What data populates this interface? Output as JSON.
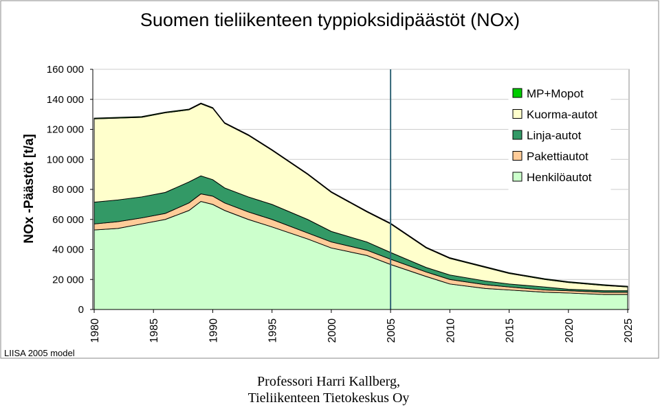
{
  "chart_data": {
    "type": "stacked_area",
    "title": "Suomen tieliikenteen typpioksidipäästöt (NOx)",
    "y_label": "NOx -Päästöt [t/a]",
    "note": "LIISA 2005 model",
    "credit": [
      "Professori Harri Kallberg,",
      "Tieliikenteen Tietokeskus Oy"
    ],
    "x": [
      1980,
      1982,
      1984,
      1986,
      1988,
      1989,
      1990,
      1991,
      1993,
      1995,
      1998,
      2000,
      2003,
      2005,
      2008,
      2010,
      2013,
      2015,
      2018,
      2020,
      2023,
      2025
    ],
    "series": [
      {
        "name": "Henkilöautot",
        "color": "#ccffcc",
        "values": [
          53000,
          54000,
          57000,
          60000,
          66000,
          72000,
          70000,
          66000,
          60000,
          55000,
          47000,
          41000,
          36000,
          30000,
          22000,
          17000,
          14000,
          13000,
          11500,
          11000,
          10000,
          10000
        ]
      },
      {
        "name": "Pakettiautot",
        "color": "#ffcc99",
        "values": [
          4000,
          4500,
          4000,
          4000,
          5000,
          5000,
          5500,
          5000,
          5000,
          5000,
          4000,
          4000,
          3500,
          3500,
          3000,
          3000,
          2500,
          2000,
          1500,
          1500,
          1500,
          1500
        ]
      },
      {
        "name": "Linja-autot",
        "color": "#339966",
        "values": [
          14500,
          14500,
          14000,
          14000,
          14000,
          12000,
          11000,
          10000,
          10000,
          10000,
          9000,
          7000,
          5500,
          4500,
          3000,
          3000,
          2500,
          2000,
          2000,
          1000,
          1000,
          1000
        ]
      },
      {
        "name": "Kuorma-autot",
        "color": "#ffffcc",
        "values": [
          55500,
          54500,
          53000,
          53000,
          48000,
          48000,
          47500,
          43000,
          41000,
          36000,
          30000,
          26000,
          20000,
          19000,
          13000,
          11000,
          9000,
          7000,
          5000,
          4500,
          3500,
          2500
        ]
      },
      {
        "name": "MP+Mopot",
        "color": "#00cc00",
        "values": [
          500,
          500,
          500,
          500,
          500,
          500,
          500,
          500,
          500,
          500,
          500,
          500,
          500,
          500,
          500,
          500,
          500,
          500,
          500,
          500,
          500,
          500
        ]
      }
    ],
    "xlim": [
      1980,
      2025
    ],
    "xticks": [
      1980,
      1985,
      1990,
      1995,
      2000,
      2005,
      2010,
      2015,
      2020,
      2025
    ],
    "ylim": [
      0,
      160000
    ],
    "yticks": [
      0,
      {
        "value": 20000,
        "label": "20 000"
      },
      {
        "value": 40000,
        "label": "40 000"
      },
      {
        "value": 60000,
        "label": "60 000"
      },
      {
        "value": 80000,
        "label": "80 000"
      },
      {
        "value": 100000,
        "label": "100 000"
      },
      {
        "value": 120000,
        "label": "120 000"
      },
      {
        "value": 140000,
        "label": "140 000"
      },
      {
        "value": 160000,
        "label": "160 000"
      }
    ],
    "grid": true,
    "reference_line_x": 2005,
    "reference_line_color": "#336677",
    "legend": "top-right"
  }
}
